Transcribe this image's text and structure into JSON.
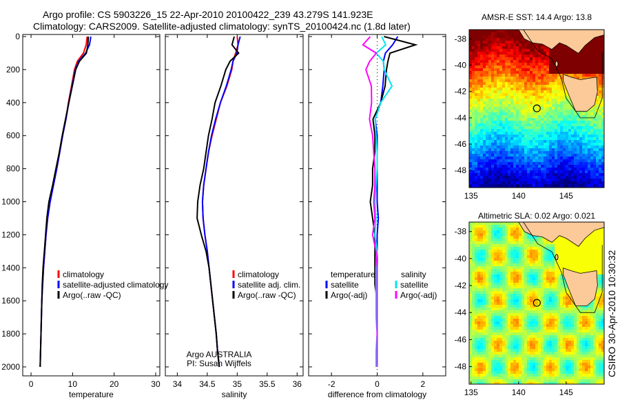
{
  "title": {
    "line1": "Argo profile: CS 5903226_15 22-Apr-2010 20100422_239 43.279S 141.923E",
    "line2": "Climatology: CARS2009. Satellite-adjusted climatology: synTS_20100424.nc (1.8d later)"
  },
  "side_stamp": "CSIRO 30-Apr-2010 10:30:32",
  "colors": {
    "climatology": "#ff0000",
    "satellite": "#0000ff",
    "argo": "#000000",
    "sal_satellite": "#00e5ee",
    "sal_argo": "#ff00ff"
  },
  "chart_data": [
    {
      "type": "line",
      "id": "temperature",
      "xlabel": "temperature",
      "ylabel": "",
      "xlim": [
        -2,
        31
      ],
      "ylim": [
        2050,
        0
      ],
      "xticks": [
        "0",
        "10",
        "20",
        "30"
      ],
      "xtick_values": [
        0,
        10,
        20,
        30
      ],
      "yticks": [
        "0",
        "200",
        "400",
        "600",
        "800",
        "1000",
        "1200",
        "1400",
        "1600",
        "1800",
        "2000"
      ],
      "ytick_values": [
        0,
        200,
        400,
        600,
        800,
        1000,
        1200,
        1400,
        1600,
        1800,
        2000
      ],
      "depth": [
        0,
        50,
        100,
        150,
        200,
        300,
        400,
        500,
        600,
        700,
        800,
        900,
        1000,
        1100,
        1200,
        1300,
        1400,
        1500,
        1600,
        1700,
        1800,
        1900,
        2000
      ],
      "series": [
        {
          "name": "climatology",
          "color": "#ff0000",
          "values": [
            13.5,
            13.2,
            12.5,
            11,
            10.3,
            9.6,
            9.0,
            8.4,
            7.6,
            6.9,
            6.2,
            5.4,
            4.6,
            4.0,
            3.6,
            3.3,
            3.0,
            2.8,
            2.6,
            2.5,
            2.4,
            2.3,
            2.2
          ]
        },
        {
          "name": "satellite-adjusted climatology",
          "color": "#0000ff",
          "values": [
            14.4,
            14,
            13,
            11.3,
            10.5,
            9.7,
            9.1,
            8.4,
            7.6,
            6.9,
            6.2,
            5.4,
            4.6,
            4.0,
            3.6,
            3.3,
            3.0,
            2.8,
            2.6,
            2.5,
            2.4,
            2.3,
            2.2
          ]
        },
        {
          "name": "Argo(..raw -QC)",
          "color": "#000000",
          "values": [
            13.8,
            13.6,
            13.2,
            11.5,
            10.6,
            9.8,
            9.1,
            8.3,
            7.5,
            6.8,
            6.0,
            5.2,
            4.3,
            3.8,
            3.5,
            3.2,
            2.9,
            2.7,
            2.6,
            2.5,
            2.4,
            2.3,
            2.2
          ]
        }
      ],
      "legend": "lower-right"
    },
    {
      "type": "line",
      "id": "salinity",
      "xlabel": "salinity",
      "xlim": [
        33.8,
        36.1
      ],
      "ylim": [
        2050,
        0
      ],
      "xticks": [
        "34",
        "34.5",
        "35",
        "35.5",
        "36"
      ],
      "xtick_values": [
        34,
        34.5,
        35,
        35.5,
        36
      ],
      "depth": [
        0,
        50,
        100,
        150,
        200,
        300,
        400,
        500,
        600,
        700,
        800,
        900,
        1000,
        1100,
        1200,
        1300,
        1400,
        1500,
        1600,
        1700,
        1800,
        1900,
        2000
      ],
      "series": [
        {
          "name": "climatology",
          "color": "#ff0000",
          "values": [
            35.0,
            35.0,
            34.95,
            34.9,
            34.88,
            34.8,
            34.72,
            34.65,
            34.58,
            34.52,
            34.48,
            34.44,
            34.42,
            34.43,
            34.46,
            34.5,
            34.53,
            34.56,
            34.59,
            34.62,
            34.65,
            34.67,
            34.7
          ]
        },
        {
          "name": "satellite adj. clim.",
          "color": "#0000ff",
          "values": [
            35.05,
            35.0,
            34.97,
            34.9,
            34.87,
            34.79,
            34.72,
            34.64,
            34.57,
            34.52,
            34.48,
            34.44,
            34.42,
            34.43,
            34.46,
            34.5,
            34.53,
            34.56,
            34.59,
            34.62,
            34.65,
            34.67,
            34.7
          ]
        },
        {
          "name": "Argo(..raw -QC)",
          "color": "#000000",
          "values": [
            34.95,
            34.9,
            35.0,
            34.85,
            34.78,
            34.7,
            34.63,
            34.58,
            34.52,
            34.48,
            34.44,
            34.38,
            34.34,
            34.33,
            34.4,
            34.48,
            34.53,
            34.56,
            34.59,
            34.62,
            34.65,
            34.67,
            34.7
          ]
        }
      ],
      "annotation": [
        "Argo AUSTRALIA",
        "PI: Susan Wijffels"
      ],
      "legend": "lower-right"
    },
    {
      "type": "line",
      "id": "difference",
      "xlabel": "difference from climatology",
      "xlim": [
        -3,
        3
      ],
      "ylim": [
        2050,
        0
      ],
      "xticks": [
        "-2",
        "0",
        "2"
      ],
      "xtick_values": [
        -2,
        0,
        2
      ],
      "depth": [
        0,
        50,
        100,
        150,
        200,
        300,
        400,
        500,
        600,
        700,
        800,
        900,
        1000,
        1100,
        1200,
        1300,
        1400,
        1500,
        1600,
        1700,
        1800,
        1900,
        2000
      ],
      "legend_headers": [
        "temperature",
        "salinity"
      ],
      "series": [
        {
          "name": "satellite",
          "group": "temperature",
          "color": "#0000ff",
          "values": [
            0.9,
            0.8,
            0.5,
            0.3,
            0.2,
            0.1,
            0.1,
            0,
            0,
            0,
            0,
            0,
            0,
            0.05,
            0,
            0,
            0,
            0,
            0,
            0,
            0,
            0,
            0
          ]
        },
        {
          "name": "Argo(-adj)",
          "group": "temperature",
          "color": "#000000",
          "values": [
            0.3,
            1.8,
            0.7,
            0.5,
            0.3,
            0.2,
            0.1,
            -0.1,
            -0.1,
            -0.1,
            -0.2,
            -0.2,
            -0.3,
            -0.2,
            -0.1,
            -0.1,
            -0.1,
            -0.1,
            0,
            0,
            0,
            0,
            0
          ]
        },
        {
          "name": "satellite",
          "group": "salinity",
          "color": "#00e5ee",
          "values": [
            0.2,
            0.5,
            0.1,
            0.3,
            0.2,
            0.5,
            0.1,
            0,
            -0.05,
            0,
            0,
            -0.05,
            -0.1,
            -0.05,
            -0.1,
            0,
            -0.05,
            -0.05,
            -0.05,
            -0.05,
            0,
            -0.05,
            -0.05
          ]
        },
        {
          "name": "Argo(-adj)",
          "group": "salinity",
          "color": "#ff00ff",
          "values": [
            -0.3,
            -0.5,
            0.1,
            -0.3,
            -0.6,
            -0.4,
            -0.3,
            -0.25,
            -0.2,
            -0.15,
            -0.1,
            -0.1,
            -0.15,
            -0.1,
            -0.2,
            -0.05,
            0,
            0,
            0,
            0,
            0,
            0,
            0
          ]
        }
      ],
      "legend": "lower-center"
    },
    {
      "type": "heatmap",
      "id": "sst_map",
      "title": "AMSR-E SST: 14.4 Argo: 13.8",
      "xticks": [
        "135",
        "140",
        "145"
      ],
      "xtick_values": [
        135,
        140,
        145
      ],
      "yticks": [
        "-38",
        "-40",
        "-42",
        "-44",
        "-46",
        "-48"
      ],
      "ytick_values": [
        -38,
        -40,
        -42,
        -44,
        -46,
        -48
      ],
      "xlim": [
        134.8,
        149
      ],
      "ylim": [
        -49.3,
        -37.3
      ],
      "marker": {
        "lon": 141.923,
        "lat": -43.279
      }
    },
    {
      "type": "heatmap",
      "id": "sla_map",
      "title": "Altimetric SLA: 0.02 Argo: 0.021",
      "xticks": [
        "135",
        "140",
        "145"
      ],
      "xtick_values": [
        135,
        140,
        145
      ],
      "yticks": [
        "-38",
        "-40",
        "-42",
        "-44",
        "-46",
        "-48"
      ],
      "ytick_values": [
        -38,
        -40,
        -42,
        -44,
        -46,
        -48
      ],
      "xlim": [
        134.8,
        149
      ],
      "ylim": [
        -49.3,
        -37.3
      ],
      "marker": {
        "lon": 141.923,
        "lat": -43.279
      }
    }
  ]
}
